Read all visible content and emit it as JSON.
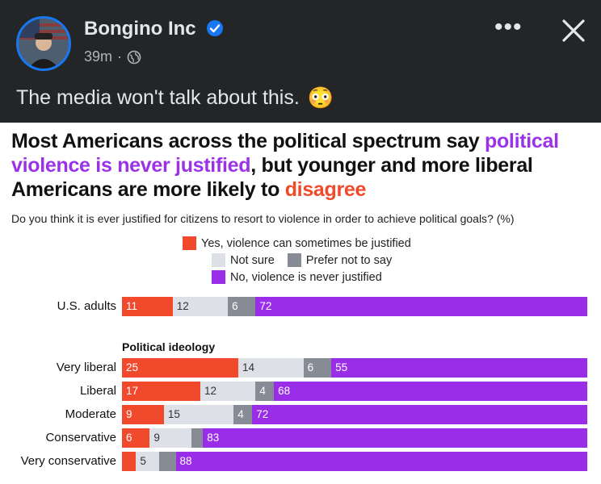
{
  "post": {
    "author": "Bongino Inc",
    "time": "39m",
    "caption": "The media won't talk about this.",
    "caption_emoji": "😳"
  },
  "chart_data": {
    "type": "bar",
    "orientation": "horizontal-stacked-100",
    "title_parts": [
      "Most Americans across the political spectrum say ",
      "political violence is never justified",
      ", but younger and more liberal Americans are more likely to ",
      "disagree"
    ],
    "question": "Do you think it is ever justified for citizens to resort to violence in order to achieve political goals? (%)",
    "legend": [
      {
        "key": "yes",
        "label": "Yes, violence can sometimes be justified",
        "color": "#f1492b"
      },
      {
        "key": "ns",
        "label": "Not sure",
        "color": "#dde0e7"
      },
      {
        "key": "pn",
        "label": "Prefer not to say",
        "color": "#878b95"
      },
      {
        "key": "no",
        "label": "No, violence is never justified",
        "color": "#9a2de8"
      }
    ],
    "section_label": "Political ideology",
    "rows": [
      {
        "label": "U.S. adults",
        "values": {
          "yes": 11,
          "ns": 12,
          "pn": 6,
          "no": 72
        },
        "shown": [
          "11",
          "12",
          "6",
          "72"
        ]
      },
      {
        "label": "Very liberal",
        "values": {
          "yes": 25,
          "ns": 14,
          "pn": 6,
          "no": 55
        },
        "shown": [
          "25",
          "14",
          "6",
          "55"
        ]
      },
      {
        "label": "Liberal",
        "values": {
          "yes": 17,
          "ns": 12,
          "pn": 4,
          "no": 68
        },
        "shown": [
          "17",
          "12",
          "4",
          "68"
        ]
      },
      {
        "label": "Moderate",
        "values": {
          "yes": 9,
          "ns": 15,
          "pn": 4,
          "no": 72
        },
        "shown": [
          "9",
          "15",
          "4",
          "72"
        ]
      },
      {
        "label": "Conservative",
        "values": {
          "yes": 6,
          "ns": 9,
          "pn": 2.5,
          "no": 83
        },
        "shown": [
          "6",
          "9",
          "",
          "83"
        ]
      },
      {
        "label": "Very conservative",
        "values": {
          "yes": 3,
          "ns": 5,
          "pn": 3.5,
          "no": 88
        },
        "shown": [
          "",
          "5",
          "",
          "88"
        ]
      }
    ]
  }
}
